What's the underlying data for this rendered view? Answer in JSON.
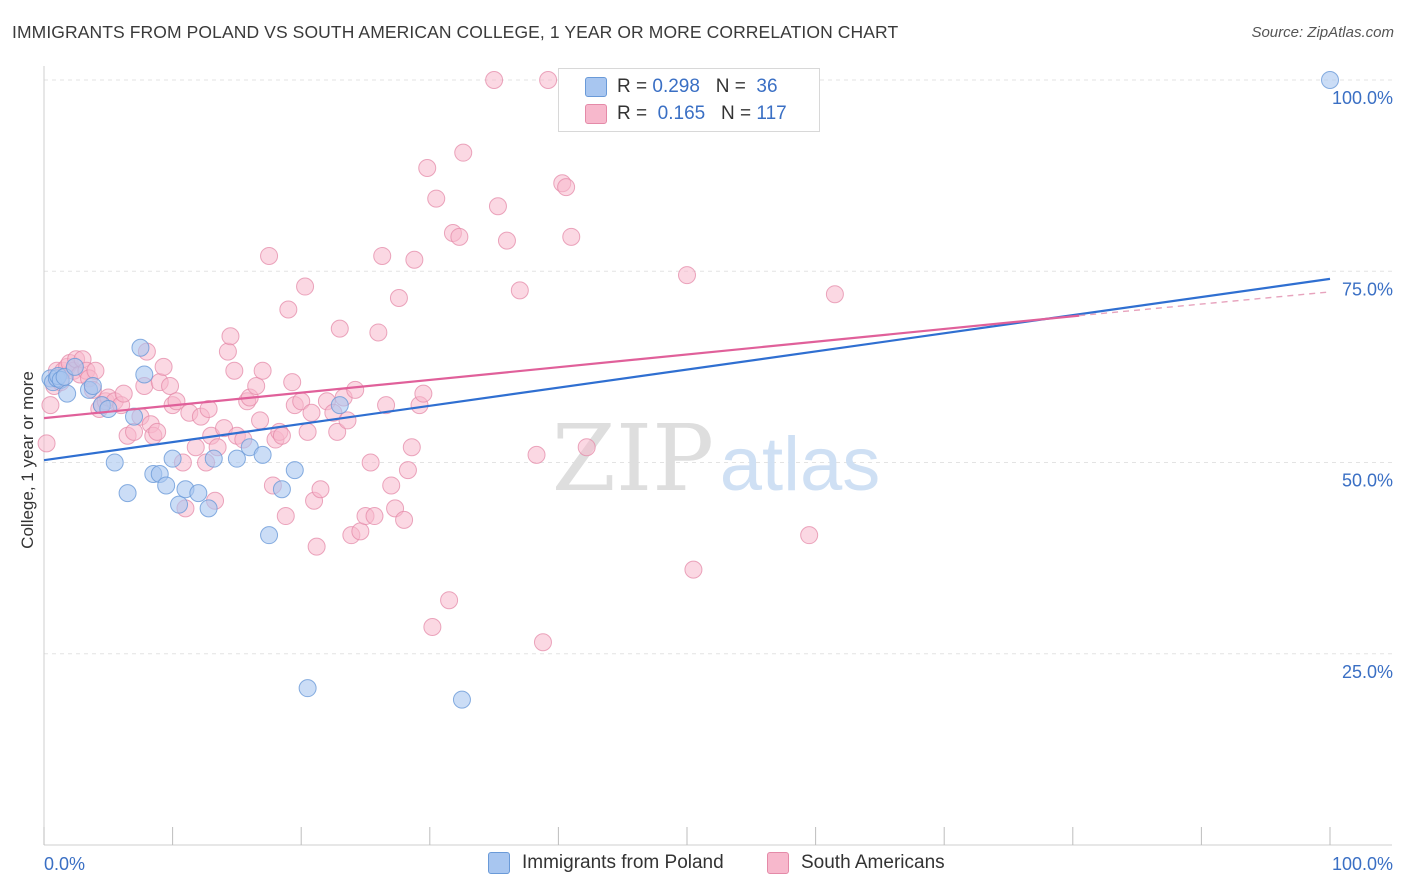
{
  "title": "IMMIGRANTS FROM POLAND VS SOUTH AMERICAN COLLEGE, 1 YEAR OR MORE CORRELATION CHART",
  "source": "Source: ZipAtlas.com",
  "watermark": {
    "zip": "ZIP",
    "atlas": "atlas"
  },
  "legend_top": {
    "rows": [
      {
        "r_label": "R = ",
        "r_value": "0.298",
        "n_label": "N = ",
        "n_value": "36",
        "color": "#a8c6f0"
      },
      {
        "r_label": "R = ",
        "r_value": "0.165",
        "n_label": "N = ",
        "n_value": "117",
        "color": "#f7b8cc"
      }
    ]
  },
  "colors": {
    "poland_fill": "#a8c6f0",
    "poland_stroke": "#6a9ad8",
    "poland_line": "#2f6fd1",
    "south_fill": "#f7b8cc",
    "south_stroke": "#e48aa8",
    "south_line": "#e0609a",
    "axis_text": "#3a6fc4",
    "grid": "#e3e3e3"
  },
  "chart_data": {
    "type": "scatter",
    "title": "IMMIGRANTS FROM POLAND VS SOUTH AMERICAN COLLEGE, 1 YEAR OR MORE CORRELATION CHART",
    "xlabel": "",
    "ylabel": "College, 1 year or more",
    "xlim": [
      0,
      100
    ],
    "ylim": [
      0,
      102
    ],
    "x_tick_labels": [
      "0.0%",
      "100.0%"
    ],
    "y_ticks": [
      25,
      50,
      75,
      100
    ],
    "y_tick_labels": [
      "25.0%",
      "50.0%",
      "75.0%",
      "100.0%"
    ],
    "grid": true,
    "legend_position": "bottom",
    "series": [
      {
        "name": "Immigrants from Poland",
        "points": [
          [
            0.5,
            61
          ],
          [
            0.7,
            60.5
          ],
          [
            1.0,
            61
          ],
          [
            1.1,
            61.3
          ],
          [
            1.3,
            60.8
          ],
          [
            1.6,
            61.2
          ],
          [
            1.8,
            59
          ],
          [
            2.4,
            62.5
          ],
          [
            3.5,
            59.5
          ],
          [
            3.8,
            60
          ],
          [
            4.5,
            57.5
          ],
          [
            5.0,
            57
          ],
          [
            5.5,
            50
          ],
          [
            6.5,
            46
          ],
          [
            7.0,
            56
          ],
          [
            7.5,
            65
          ],
          [
            7.8,
            61.5
          ],
          [
            8.5,
            48.5
          ],
          [
            9.0,
            48.5
          ],
          [
            9.5,
            47
          ],
          [
            10.0,
            50.5
          ],
          [
            10.5,
            44.5
          ],
          [
            11.0,
            46.5
          ],
          [
            12.0,
            46
          ],
          [
            12.8,
            44
          ],
          [
            13.2,
            50.5
          ],
          [
            15.0,
            50.5
          ],
          [
            16.0,
            52
          ],
          [
            17.0,
            51
          ],
          [
            17.5,
            40.5
          ],
          [
            18.5,
            46.5
          ],
          [
            19.5,
            49
          ],
          [
            20.5,
            20.5
          ],
          [
            23.0,
            57.5
          ],
          [
            32.5,
            19
          ],
          [
            100.0,
            100
          ]
        ]
      },
      {
        "name": "South Americans",
        "points": [
          [
            0.2,
            52.5
          ],
          [
            0.5,
            57.5
          ],
          [
            0.8,
            60
          ],
          [
            1.0,
            62
          ],
          [
            1.3,
            60.5
          ],
          [
            1.5,
            62
          ],
          [
            1.8,
            62.5
          ],
          [
            2.0,
            63
          ],
          [
            2.3,
            62
          ],
          [
            2.5,
            63.5
          ],
          [
            2.8,
            61.5
          ],
          [
            3.0,
            63.5
          ],
          [
            3.3,
            62
          ],
          [
            3.5,
            61
          ],
          [
            3.8,
            59.5
          ],
          [
            4.0,
            62
          ],
          [
            4.3,
            57
          ],
          [
            4.5,
            57.5
          ],
          [
            4.8,
            58
          ],
          [
            5.0,
            58.5
          ],
          [
            5.5,
            58
          ],
          [
            6.0,
            57.5
          ],
          [
            6.2,
            59
          ],
          [
            6.5,
            53.5
          ],
          [
            7.0,
            54
          ],
          [
            7.5,
            56
          ],
          [
            7.8,
            60
          ],
          [
            8.0,
            64.5
          ],
          [
            8.3,
            55
          ],
          [
            8.5,
            53.5
          ],
          [
            8.8,
            54
          ],
          [
            9.0,
            60.5
          ],
          [
            9.3,
            62.5
          ],
          [
            9.8,
            60
          ],
          [
            10.0,
            57.5
          ],
          [
            10.3,
            58
          ],
          [
            10.8,
            50
          ],
          [
            11.0,
            44
          ],
          [
            11.3,
            56.5
          ],
          [
            11.8,
            52
          ],
          [
            12.2,
            56
          ],
          [
            12.6,
            50
          ],
          [
            12.8,
            57
          ],
          [
            13.0,
            53.5
          ],
          [
            13.3,
            45
          ],
          [
            13.5,
            52
          ],
          [
            14.0,
            54.5
          ],
          [
            14.3,
            64.5
          ],
          [
            14.5,
            66.5
          ],
          [
            14.8,
            62
          ],
          [
            15.0,
            53.5
          ],
          [
            15.5,
            53
          ],
          [
            15.8,
            58
          ],
          [
            16.0,
            58.5
          ],
          [
            16.5,
            60
          ],
          [
            16.8,
            55.5
          ],
          [
            17.0,
            62
          ],
          [
            17.5,
            77
          ],
          [
            17.8,
            47
          ],
          [
            18.0,
            53
          ],
          [
            18.3,
            54
          ],
          [
            18.5,
            53.5
          ],
          [
            18.8,
            43
          ],
          [
            19.0,
            70
          ],
          [
            19.3,
            60.5
          ],
          [
            19.5,
            57.5
          ],
          [
            20.0,
            58
          ],
          [
            20.3,
            73
          ],
          [
            20.5,
            54
          ],
          [
            20.8,
            56.5
          ],
          [
            21.0,
            45
          ],
          [
            21.2,
            39
          ],
          [
            21.5,
            46.5
          ],
          [
            22.0,
            58
          ],
          [
            22.5,
            56.5
          ],
          [
            22.8,
            54
          ],
          [
            23.0,
            67.5
          ],
          [
            23.3,
            58.5
          ],
          [
            23.6,
            55.5
          ],
          [
            23.9,
            40.5
          ],
          [
            24.2,
            59.5
          ],
          [
            24.6,
            41
          ],
          [
            25.0,
            43
          ],
          [
            25.4,
            50
          ],
          [
            25.7,
            43
          ],
          [
            26.0,
            67
          ],
          [
            26.3,
            77
          ],
          [
            26.6,
            57.5
          ],
          [
            27.0,
            47
          ],
          [
            27.3,
            44
          ],
          [
            27.6,
            71.5
          ],
          [
            28.0,
            42.5
          ],
          [
            28.3,
            49
          ],
          [
            28.6,
            52
          ],
          [
            28.8,
            76.5
          ],
          [
            29.2,
            57.5
          ],
          [
            29.5,
            59
          ],
          [
            29.8,
            88.5
          ],
          [
            30.2,
            28.5
          ],
          [
            30.5,
            84.5
          ],
          [
            31.5,
            32
          ],
          [
            31.8,
            80
          ],
          [
            32.3,
            79.5
          ],
          [
            32.6,
            90.5
          ],
          [
            35.0,
            100
          ],
          [
            35.3,
            83.5
          ],
          [
            36.0,
            79
          ],
          [
            37.0,
            72.5
          ],
          [
            38.3,
            51
          ],
          [
            38.8,
            26.5
          ],
          [
            39.2,
            100
          ],
          [
            40.3,
            86.5
          ],
          [
            40.6,
            86
          ],
          [
            41.0,
            79.5
          ],
          [
            42.2,
            52
          ],
          [
            50.0,
            74.5
          ],
          [
            50.5,
            36
          ],
          [
            59.5,
            40.5
          ],
          [
            61.5,
            72
          ]
        ]
      }
    ],
    "trend_lines": [
      {
        "series": "Immigrants from Poland",
        "x": [
          0,
          100
        ],
        "y": [
          50.3,
          74.0
        ]
      },
      {
        "series": "South Americans",
        "x": [
          0,
          80.5
        ],
        "y": [
          55.8,
          69.2
        ],
        "dashed_extension_to_x": 100,
        "dashed_extension_y": 72.3
      }
    ]
  },
  "y_axis_title": "College, 1 year or more",
  "bottom_legend": {
    "items": [
      {
        "label": "Immigrants from Poland",
        "color": "#a8c6f0"
      },
      {
        "label": "South Americans",
        "color": "#f7b8cc"
      }
    ]
  }
}
